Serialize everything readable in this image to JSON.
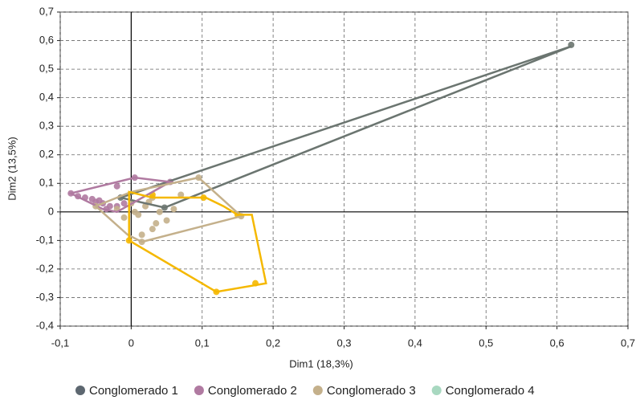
{
  "chart_data": {
    "type": "scatter",
    "x_label": "Dim1 (18,3%)",
    "y_label": "Dim2 (13,5%)",
    "xlim": [
      -0.1,
      0.7
    ],
    "xticks": [
      {
        "value": -0.1,
        "label": "-0,1"
      },
      0,
      {
        "value": 0.1,
        "label": "0,1"
      },
      {
        "value": 0.2,
        "label": "0,2"
      },
      {
        "value": 0.3,
        "label": "0,3"
      },
      {
        "value": 0.4,
        "label": "0,4"
      },
      {
        "value": 0.5,
        "label": "0,5"
      },
      {
        "value": 0.6,
        "label": "0,6"
      },
      {
        "value": 0.7,
        "label": "0,7"
      }
    ],
    "ylim": [
      -0.4,
      0.7
    ],
    "yticks": [
      {
        "value": -0.4,
        "label": "-0,4"
      },
      {
        "value": -0.3,
        "label": "-0,3"
      },
      {
        "value": -0.2,
        "label": "-0,2"
      },
      {
        "value": -0.1,
        "label": "-0,1"
      },
      0,
      {
        "value": 0.1,
        "label": "0,1"
      },
      {
        "value": 0.2,
        "label": "0,2"
      },
      {
        "value": 0.3,
        "label": "0,3"
      },
      {
        "value": 0.4,
        "label": "0,4"
      },
      {
        "value": 0.5,
        "label": "0,5"
      },
      {
        "value": 0.6,
        "label": "0,6"
      },
      {
        "value": 0.7,
        "label": "0,7"
      }
    ],
    "grid": true,
    "series": [
      {
        "name": "Conglomerado 1",
        "color": "#5d6770",
        "hull_color": "#6b7570",
        "x": [
          0.62,
          0.047,
          -0.015
        ],
        "y": [
          0.585,
          0.015,
          0.05
        ],
        "hull_x": [
          0.62,
          0.047,
          -0.015
        ],
        "hull_y": [
          0.58,
          0.015,
          0.05
        ]
      },
      {
        "name": "Conglomerado 2",
        "color": "#b07aa1",
        "hull_color": "#b07aa1",
        "x": [
          -0.085,
          -0.075,
          -0.065,
          -0.055,
          -0.045,
          -0.04,
          -0.03,
          -0.02,
          0.005,
          0.055,
          -0.02,
          -0.05,
          -0.035,
          -0.01
        ],
        "y": [
          0.065,
          0.055,
          0.05,
          0.045,
          0.04,
          0.03,
          0.02,
          0.09,
          0.12,
          0.105,
          0.02,
          0.035,
          0.01,
          0.03
        ],
        "hull_x": [
          -0.085,
          0.005,
          0.055,
          -0.02,
          -0.04
        ],
        "hull_y": [
          0.065,
          0.12,
          0.105,
          0.0,
          0.01
        ]
      },
      {
        "name": "Conglomerado 3",
        "color": "#c4b08b",
        "hull_color": "#c4b08b",
        "x": [
          0.095,
          0.155,
          0.015,
          -0.05,
          -0.02,
          0.0,
          0.01,
          0.02,
          0.03,
          0.04,
          0.05,
          0.07,
          0.03,
          0.015,
          -0.01,
          0.06,
          0.025,
          0.005,
          0.035
        ],
        "y": [
          0.12,
          -0.015,
          -0.105,
          0.02,
          0.01,
          0.03,
          -0.01,
          0.02,
          0.05,
          0.0,
          -0.03,
          0.06,
          -0.06,
          -0.08,
          -0.02,
          0.01,
          0.035,
          0.0,
          -0.04
        ],
        "hull_x": [
          0.095,
          0.155,
          0.015,
          -0.005,
          -0.05,
          0.0
        ],
        "hull_y": [
          0.12,
          -0.015,
          -0.105,
          -0.08,
          0.02,
          0.07
        ]
      },
      {
        "name": "Conglomerado 4",
        "color": "#a8d8c0",
        "hull_color": "#f5b800",
        "x": [
          0.03,
          0.102,
          0.15,
          0.175,
          0.12,
          -0.003
        ],
        "y": [
          0.06,
          0.05,
          -0.01,
          -0.25,
          -0.28,
          -0.1
        ],
        "hull_x": [
          -0.003,
          0.03,
          0.105,
          0.13,
          0.15,
          0.17,
          0.19,
          0.12,
          -0.003
        ],
        "hull_y": [
          0.07,
          0.05,
          0.05,
          0.02,
          -0.01,
          -0.01,
          -0.25,
          -0.28,
          -0.1
        ]
      }
    ]
  }
}
